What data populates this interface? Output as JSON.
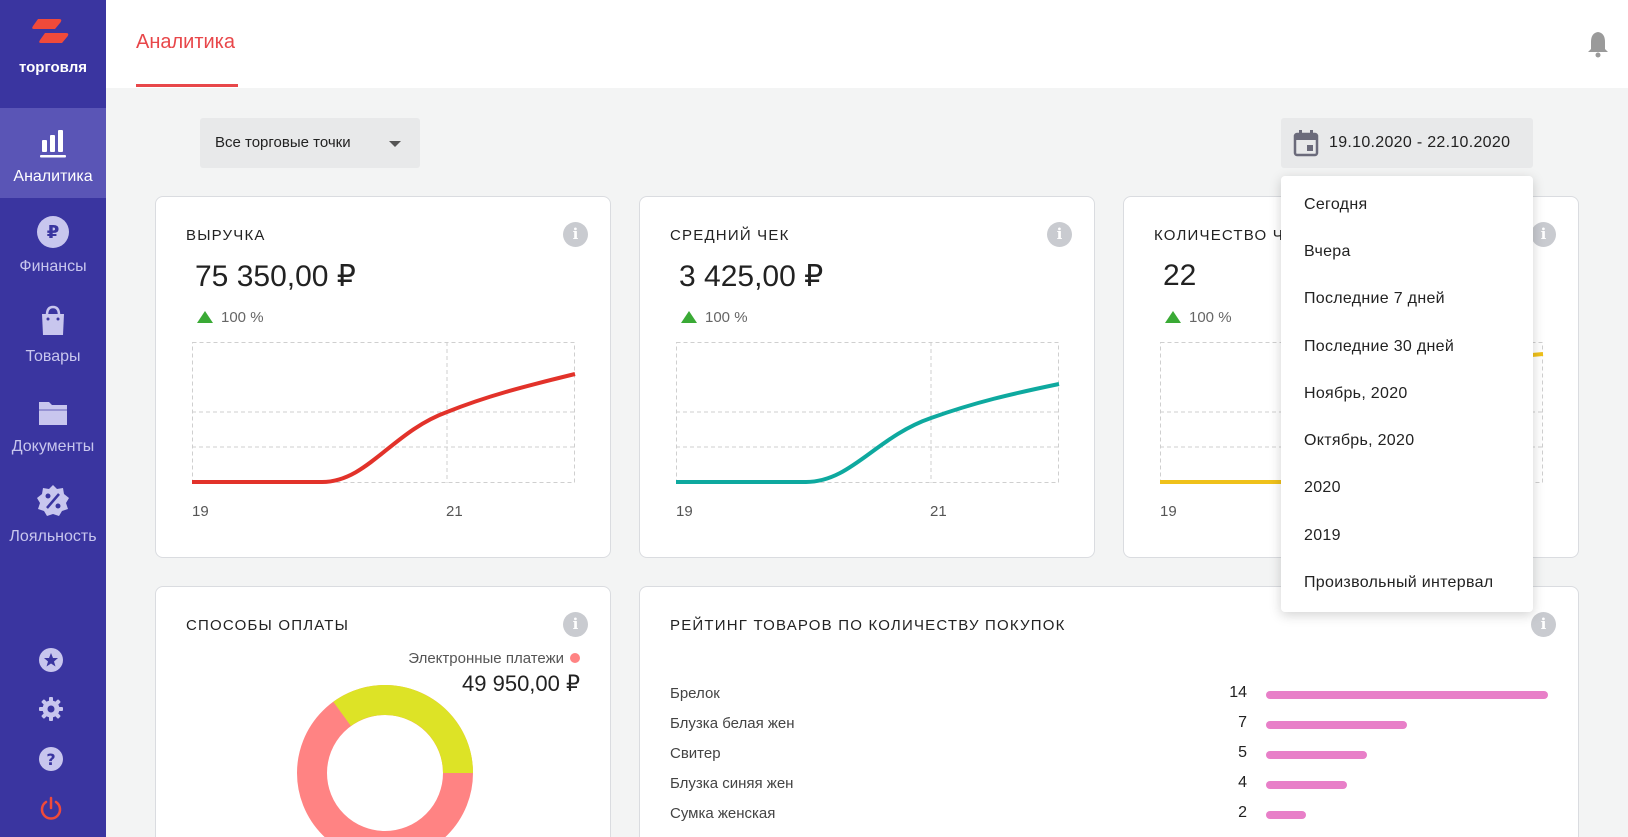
{
  "app": {
    "logo_text": "торговля"
  },
  "sidebar": {
    "items": [
      {
        "label": "Аналитика",
        "icon": "bar-chart-icon",
        "active": true
      },
      {
        "label": "Финансы",
        "icon": "ruble-icon",
        "active": false
      },
      {
        "label": "Товары",
        "icon": "shopping-bag-icon",
        "active": false
      },
      {
        "label": "Документы",
        "icon": "folder-icon",
        "active": false
      },
      {
        "label": "Лояльность",
        "icon": "percent-badge-icon",
        "active": false
      }
    ],
    "bottom_icons": [
      "star-icon",
      "gear-icon",
      "help-icon",
      "power-icon"
    ]
  },
  "header": {
    "tab": "Аналитика",
    "icon": "bell-icon"
  },
  "filters": {
    "store_select": "Все торговые точки",
    "date_range": "19.10.2020 - 22.10.2020"
  },
  "date_menu": {
    "options": [
      "Сегодня",
      "Вчера",
      "Последние 7 дней",
      "Последние 30 дней",
      "Ноябрь, 2020",
      "Октябрь, 2020",
      "2020",
      "2019",
      "Произвольный интервал"
    ]
  },
  "metrics": [
    {
      "title": "ВЫРУЧКА",
      "value": "75 350,00 ₽",
      "change": "100 %",
      "color": "#e2322a",
      "x_start": "19",
      "x_mid": "21"
    },
    {
      "title": "СРЕДНИЙ ЧЕК",
      "value": "3 425,00 ₽",
      "change": "100 %",
      "color": "#0ea99f",
      "x_start": "19",
      "x_mid": "21"
    },
    {
      "title": "КОЛИЧЕСТВО Ч",
      "value": "22",
      "change": "100 %",
      "color": "#efc11a",
      "x_start": "19",
      "x_mid": ""
    }
  ],
  "payments": {
    "title": "СПОСОБЫ ОПЛАТЫ",
    "legend_label": "Электронные платежи",
    "legend_amount": "49 950,00 ₽",
    "colors": {
      "electronic": "#ff8383",
      "other": "#dde326"
    }
  },
  "rating": {
    "title": "РЕЙТИНГ ТОВАРОВ ПО КОЛИЧЕСТВУ ПОКУПОК",
    "items": [
      {
        "name": "Брелок",
        "count": "14",
        "value": 14
      },
      {
        "name": "Блузка белая жен",
        "count": "7",
        "value": 7
      },
      {
        "name": "Свитер",
        "count": "5",
        "value": 5
      },
      {
        "name": "Блузка синяя жен",
        "count": "4",
        "value": 4
      },
      {
        "name": "Сумка женская",
        "count": "2",
        "value": 2
      }
    ],
    "max": 14,
    "bar_color": "#e87fc8"
  }
}
